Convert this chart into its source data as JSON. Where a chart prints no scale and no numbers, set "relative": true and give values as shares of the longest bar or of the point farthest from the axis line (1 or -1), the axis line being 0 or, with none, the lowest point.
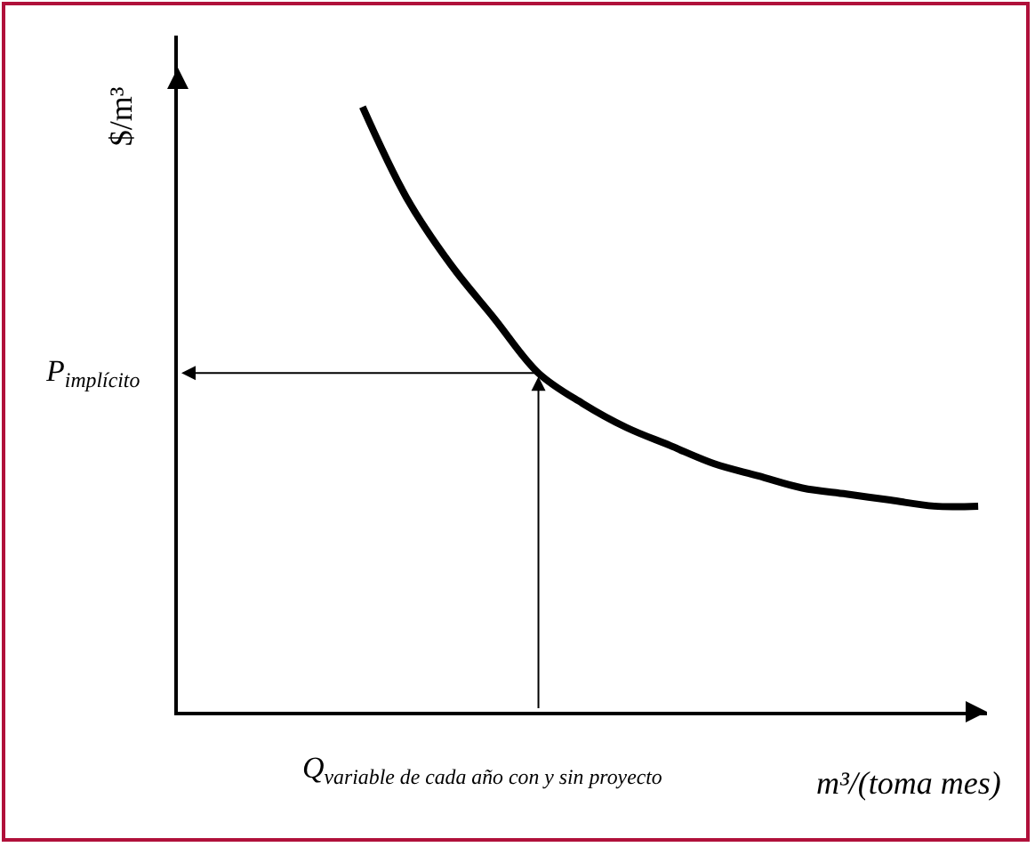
{
  "chart_data": {
    "type": "line",
    "relative": true,
    "xlabel": "m³/(toma mes)",
    "ylabel": "$/m³",
    "categories": [
      null,
      null,
      null,
      null,
      null,
      null,
      null,
      null,
      null,
      null,
      null,
      null,
      null,
      null,
      null,
      null,
      null,
      null,
      null
    ],
    "series": [
      {
        "color": "#000000",
        "values": [
          null,
          null,
          null,
          null,
          1.0,
          0.85,
          0.74,
          0.65,
          0.56,
          0.51,
          0.47,
          0.44,
          0.41,
          0.39,
          0.37,
          0.36,
          0.35,
          0.34,
          0.34
        ]
      }
    ],
    "annotations": [
      "P$_{implícito}$",
      "Q$_{variable de cada año con y sin proyecto}$"
    ],
    "marker": "none",
    "line_style": "solid",
    "tick_labels": false
  }
}
